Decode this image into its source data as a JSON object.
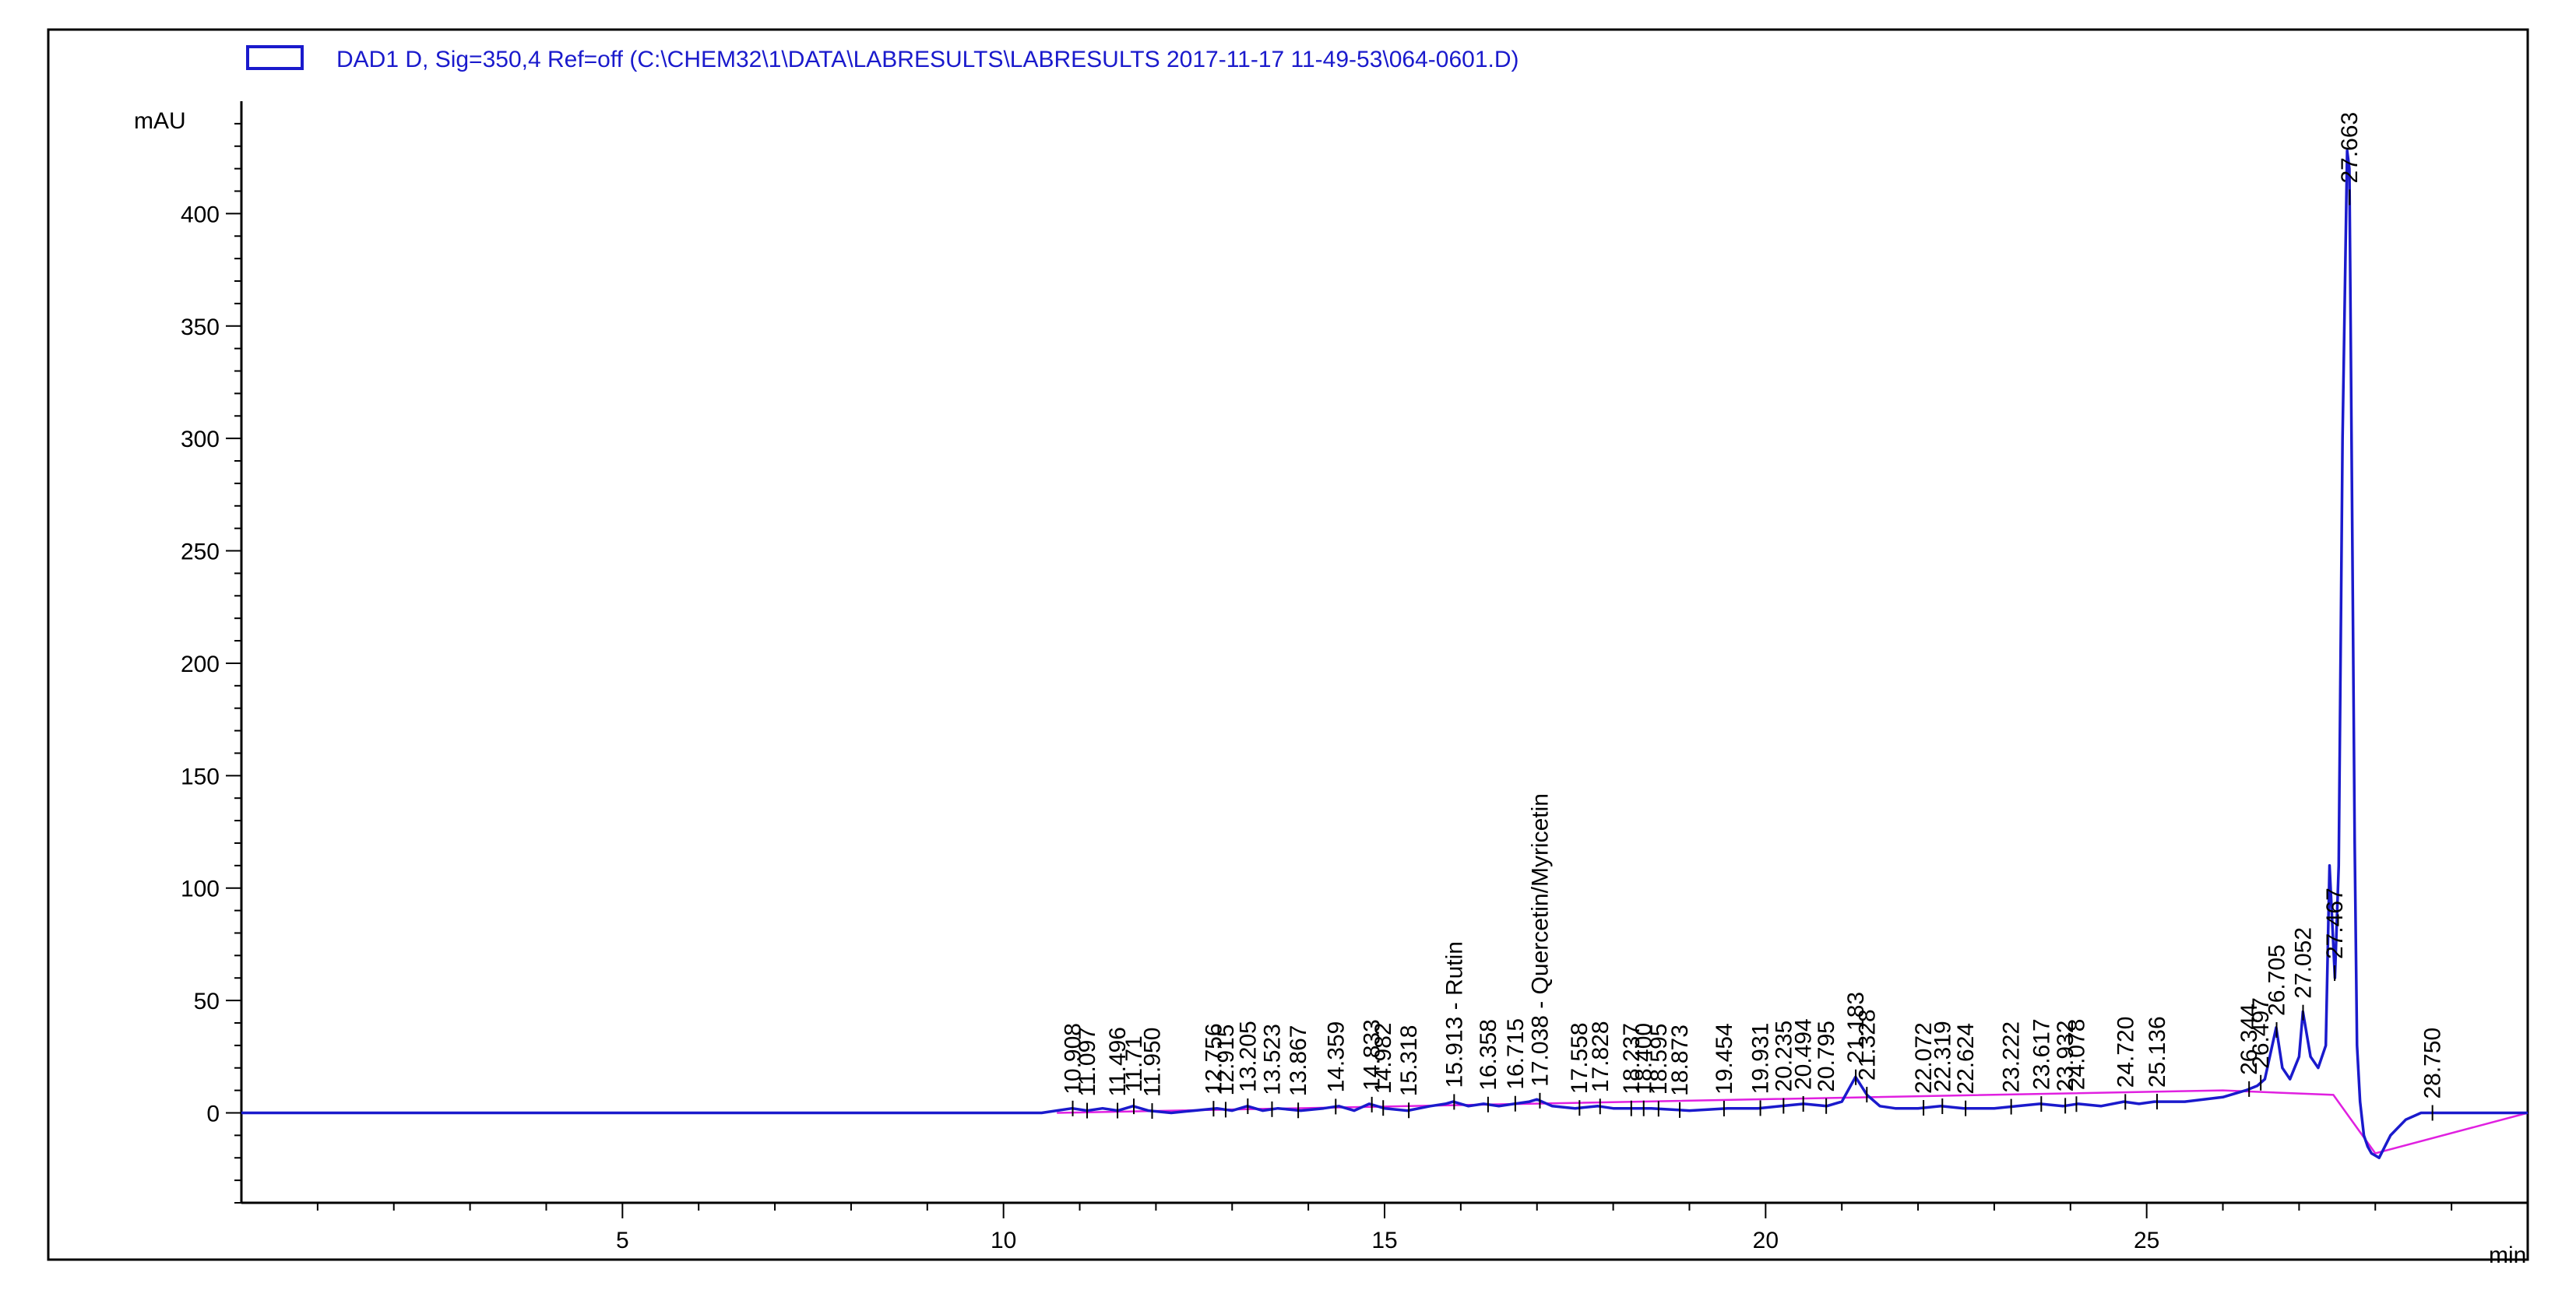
{
  "chart_data": {
    "type": "line",
    "legend": {
      "label": "DAD1 D, Sig=350,4 Ref=off (C:\\CHEM32\\1\\DATA\\LABRESULTS\\LABRESULTS 2017-11-17 11-49-53\\064-0601.D)",
      "placement": "top-left",
      "color": "#1a1acc"
    },
    "ylabel": "mAU",
    "xunit": "min",
    "xlim": [
      0,
      30
    ],
    "ylim": [
      -40,
      450
    ],
    "xticks": [
      5,
      10,
      15,
      20,
      25
    ],
    "yticks": [
      0,
      50,
      100,
      150,
      200,
      250,
      300,
      350,
      400
    ],
    "grid": false,
    "colors": {
      "signal": "#1a1acc",
      "baseline": "#e020e0",
      "axis": "#000000"
    },
    "signal": {
      "x": [
        0,
        10.5,
        10.9,
        11.1,
        11.3,
        11.5,
        11.7,
        11.9,
        12.2,
        12.5,
        12.8,
        13.0,
        13.2,
        13.4,
        13.6,
        13.9,
        14.2,
        14.4,
        14.6,
        14.8,
        15.0,
        15.3,
        15.6,
        15.8,
        15.9,
        16.1,
        16.3,
        16.5,
        16.7,
        16.9,
        17.0,
        17.2,
        17.5,
        17.8,
        18.0,
        18.5,
        19.0,
        19.5,
        19.9,
        20.2,
        20.5,
        20.8,
        21.0,
        21.18,
        21.33,
        21.5,
        21.7,
        22.0,
        22.3,
        22.6,
        23.0,
        23.3,
        23.6,
        23.9,
        24.1,
        24.4,
        24.7,
        24.9,
        25.1,
        25.5,
        26.0,
        26.3,
        26.45,
        26.55,
        26.7,
        26.78,
        26.88,
        27.0,
        27.05,
        27.15,
        27.25,
        27.35,
        27.4,
        27.47,
        27.52,
        27.57,
        27.63,
        27.66,
        27.7,
        27.73,
        27.76,
        27.8,
        27.85,
        27.9,
        27.95,
        28.05,
        28.2,
        28.4,
        28.6,
        28.75,
        29.0,
        29.5,
        30.0
      ],
      "y": [
        0,
        0,
        2,
        1,
        2,
        1,
        3,
        1,
        0,
        1,
        2,
        1,
        3,
        1,
        2,
        1,
        2,
        3,
        1,
        4,
        2,
        1,
        3,
        4,
        5,
        3,
        4,
        3,
        4,
        5,
        6,
        3,
        2,
        3,
        2,
        2,
        1,
        2,
        2,
        3,
        4,
        3,
        5,
        16,
        8,
        3,
        2,
        2,
        3,
        2,
        2,
        3,
        4,
        3,
        4,
        3,
        5,
        4,
        5,
        5,
        7,
        10,
        12,
        15,
        38,
        20,
        15,
        25,
        45,
        25,
        20,
        30,
        110,
        60,
        110,
        300,
        428,
        420,
        250,
        120,
        30,
        5,
        -10,
        -15,
        -18,
        -20,
        -10,
        -3,
        0,
        0,
        0,
        0,
        0
      ]
    },
    "baseline": {
      "x": [
        10.7,
        26.0,
        27.45,
        28.0,
        30.0
      ],
      "y": [
        0,
        10,
        8,
        -18,
        0
      ]
    },
    "peaks": [
      {
        "label": "10.908",
        "x": 10.908
      },
      {
        "label": "11.097",
        "x": 11.097
      },
      {
        "label": "11.496",
        "x": 11.496
      },
      {
        "label": "11.71",
        "x": 11.71
      },
      {
        "label": "11.950",
        "x": 11.95
      },
      {
        "label": "12.756",
        "x": 12.756
      },
      {
        "label": "12.915",
        "x": 12.915
      },
      {
        "label": "13.205",
        "x": 13.205
      },
      {
        "label": "13.523",
        "x": 13.523
      },
      {
        "label": "13.867",
        "x": 13.867
      },
      {
        "label": "14.359",
        "x": 14.359
      },
      {
        "label": "14.833",
        "x": 14.833
      },
      {
        "label": "14.982",
        "x": 14.982
      },
      {
        "label": "15.318",
        "x": 15.318
      },
      {
        "label": "15.913 - Rutin",
        "x": 15.913
      },
      {
        "label": "16.358",
        "x": 16.358
      },
      {
        "label": "16.715",
        "x": 16.715
      },
      {
        "label": "17.038 - Quercetin/Myricetin",
        "x": 17.038
      },
      {
        "label": "17.558",
        "x": 17.558
      },
      {
        "label": "17.828",
        "x": 17.828
      },
      {
        "label": "18.237",
        "x": 18.237
      },
      {
        "label": "18.400",
        "x": 18.4
      },
      {
        "label": "18.595",
        "x": 18.595
      },
      {
        "label": "18.873",
        "x": 18.873
      },
      {
        "label": "19.454",
        "x": 19.454
      },
      {
        "label": "19.931",
        "x": 19.931
      },
      {
        "label": "20.235",
        "x": 20.235
      },
      {
        "label": "20.494",
        "x": 20.494
      },
      {
        "label": "20.795",
        "x": 20.795
      },
      {
        "label": "21.183",
        "x": 21.183
      },
      {
        "label": "21.328",
        "x": 21.328
      },
      {
        "label": "22.072",
        "x": 22.072
      },
      {
        "label": "22.319",
        "x": 22.319
      },
      {
        "label": "22.624",
        "x": 22.624
      },
      {
        "label": "23.222",
        "x": 23.222
      },
      {
        "label": "23.617",
        "x": 23.617
      },
      {
        "label": "23.932",
        "x": 23.932
      },
      {
        "label": "24.078",
        "x": 24.078
      },
      {
        "label": "24.720",
        "x": 24.72
      },
      {
        "label": "25.136",
        "x": 25.136
      },
      {
        "label": "26.344",
        "x": 26.344
      },
      {
        "label": "26.497",
        "x": 26.497
      },
      {
        "label": "26.705",
        "x": 26.705
      },
      {
        "label": "27.052",
        "x": 27.052
      },
      {
        "label": "27.467",
        "x": 27.467
      },
      {
        "label": "27.663",
        "x": 27.663
      },
      {
        "label": "28.750",
        "x": 28.75
      }
    ]
  }
}
